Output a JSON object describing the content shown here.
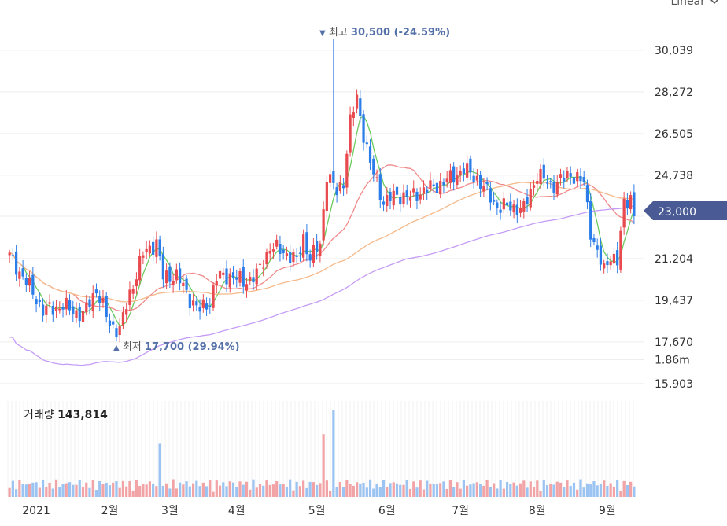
{
  "scale_button": {
    "label": "Linear"
  },
  "volume_panel": {
    "label": "거래량",
    "value": "143,814",
    "axis_tick": "1.86m"
  },
  "annotations": {
    "high_marker": "▼",
    "high_label": "최고",
    "high_value": "30,500 (-24.59%)",
    "low_marker": "▲",
    "low_label": "최저",
    "low_value": "17,700 (29.94%)"
  },
  "current_price": "23,000",
  "colors": {
    "up": "#e84a4f",
    "down": "#2b7de9",
    "ma5": "#6ccb5f",
    "ma20": "#f08a8a",
    "ma60": "#f5b98a",
    "ma120": "#c59cf5",
    "price_tag": "#4a5a94",
    "vol_up": "#f2a3a6",
    "vol_down": "#9cc4f2"
  },
  "chart_data": {
    "type": "candlestick",
    "y_axis_ticks": [
      "30,039",
      "28,272",
      "26,505",
      "24,738",
      "23,000",
      "21,204",
      "19,437",
      "17,670",
      "15,903"
    ],
    "ylim": [
      15500,
      31500
    ],
    "x_axis_ticks": [
      "2021",
      "2월",
      "3월",
      "4월",
      "5월",
      "6월",
      "7월",
      "8월",
      "9월"
    ],
    "grid": true,
    "moving_averages": [
      "ma5",
      "ma20",
      "ma60",
      "ma120"
    ],
    "close_anchors": [
      [
        0,
        21300
      ],
      [
        6,
        20000
      ],
      [
        10,
        19000
      ],
      [
        16,
        19200
      ],
      [
        22,
        18800
      ],
      [
        26,
        19900
      ],
      [
        30,
        18400
      ],
      [
        33,
        18200
      ],
      [
        36,
        19700
      ],
      [
        40,
        21400
      ],
      [
        44,
        21900
      ],
      [
        46,
        20400
      ],
      [
        50,
        20500
      ],
      [
        54,
        19500
      ],
      [
        57,
        19000
      ],
      [
        60,
        19400
      ],
      [
        62,
        20400
      ],
      [
        66,
        20500
      ],
      [
        70,
        20200
      ],
      [
        74,
        20500
      ],
      [
        78,
        21700
      ],
      [
        82,
        21500
      ],
      [
        86,
        21100
      ],
      [
        88,
        22100
      ],
      [
        90,
        21200
      ],
      [
        93,
        21800
      ],
      [
        95,
        24800
      ],
      [
        98,
        24000
      ],
      [
        100,
        24500
      ],
      [
        102,
        27000
      ],
      [
        104,
        28000
      ],
      [
        106,
        26500
      ],
      [
        108,
        25200
      ],
      [
        112,
        23600
      ],
      [
        116,
        23900
      ],
      [
        120,
        23800
      ],
      [
        124,
        24100
      ],
      [
        128,
        24300
      ],
      [
        132,
        24600
      ],
      [
        136,
        25000
      ],
      [
        140,
        24600
      ],
      [
        144,
        23800
      ],
      [
        146,
        23400
      ],
      [
        150,
        23400
      ],
      [
        154,
        23300
      ],
      [
        158,
        24800
      ],
      [
        162,
        24300
      ],
      [
        166,
        24600
      ],
      [
        168,
        24800
      ],
      [
        172,
        24400
      ],
      [
        174,
        22400
      ],
      [
        176,
        21400
      ],
      [
        178,
        20700
      ],
      [
        180,
        21400
      ],
      [
        182,
        21000
      ],
      [
        184,
        23500
      ],
      [
        186,
        23900
      ],
      [
        187,
        23000
      ]
    ],
    "high_point": {
      "index": 97,
      "value": 30500
    },
    "low_point": {
      "index": 32,
      "value": 17700
    },
    "volume_spikes": [
      {
        "index": 45,
        "value": 720000
      },
      {
        "index": 94,
        "value": 850000
      },
      {
        "index": 97,
        "value": 1180000
      }
    ],
    "volume_max": 1300000
  }
}
